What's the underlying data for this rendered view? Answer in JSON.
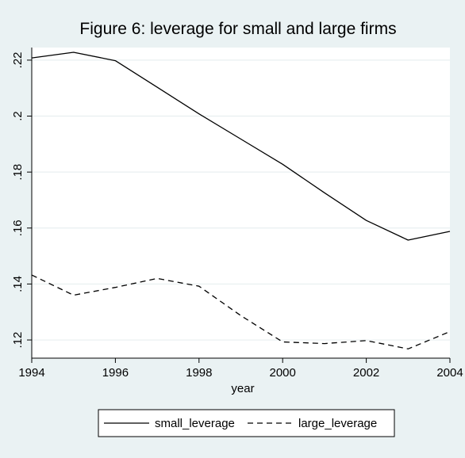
{
  "chart_data": {
    "type": "line",
    "title": "Figure 6: leverage for small and large firms",
    "xlabel": "year",
    "ylabel": "",
    "x": [
      1994,
      1995,
      1996,
      1997,
      1998,
      1999,
      2000,
      2001,
      2002,
      2003,
      2004
    ],
    "xlim": [
      1994,
      2004
    ],
    "ylim": [
      0.1135,
      0.2245
    ],
    "xticks": [
      1994,
      1996,
      1998,
      2000,
      2002,
      2004
    ],
    "xtick_labels": [
      "1994",
      "1996",
      "1998",
      "2000",
      "2002",
      "2004"
    ],
    "yticks": [
      0.12,
      0.14,
      0.16,
      0.18,
      0.2,
      0.22
    ],
    "ytick_labels": [
      ".12",
      ".14",
      ".16",
      ".18",
      ".2",
      ".22"
    ],
    "grid": true,
    "legend_position": "bottom",
    "series": [
      {
        "name": "small_leverage",
        "style": "solid",
        "color": "#000000",
        "values": [
          0.2208,
          0.2228,
          0.2198,
          0.2103,
          0.2008,
          0.1918,
          0.1828,
          0.1726,
          0.1627,
          0.1557,
          0.1588
        ]
      },
      {
        "name": "large_leverage",
        "style": "dashed",
        "color": "#000000",
        "values": [
          0.1432,
          0.136,
          0.1388,
          0.142,
          0.1392,
          0.1287,
          0.1193,
          0.1187,
          0.1198,
          0.1168,
          0.123
        ]
      }
    ],
    "colors": {
      "background": "#eaf2f3",
      "plot_background": "#ffffff",
      "grid": "#e8eff0"
    }
  }
}
